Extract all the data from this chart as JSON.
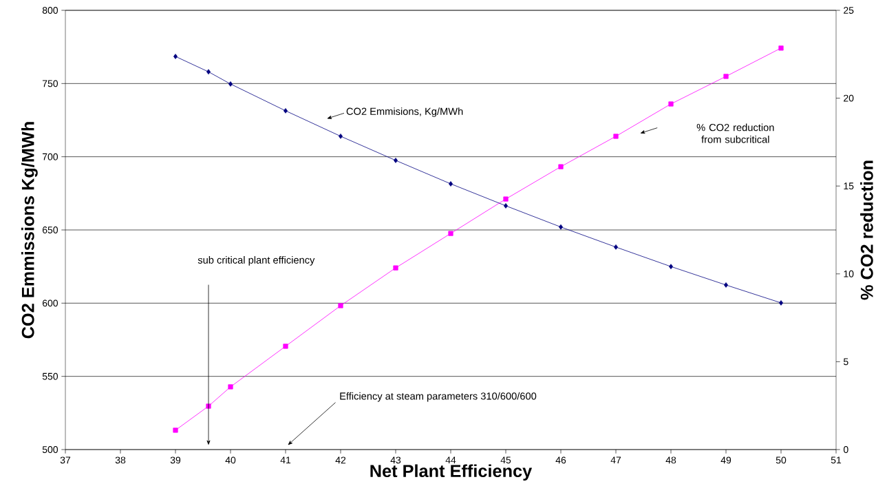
{
  "chart_data": {
    "type": "line",
    "xlabel": "Net Plant Efficiency",
    "ylabel": "CO2 Emmissions Kg/MWh",
    "y2label": "% CO2 reduction",
    "xlim": [
      37,
      51
    ],
    "xticks": [
      37,
      38,
      39,
      40,
      41,
      42,
      43,
      44,
      45,
      46,
      47,
      48,
      49,
      50,
      51
    ],
    "ylim": [
      500,
      800
    ],
    "yticks": [
      500,
      550,
      600,
      650,
      700,
      750,
      800
    ],
    "y2lim": [
      0,
      25
    ],
    "y2ticks": [
      0,
      5,
      10,
      15,
      20,
      25
    ],
    "grid": "y",
    "line_style": "solid",
    "x": [
      39,
      39.6,
      40,
      41,
      42,
      43,
      44,
      45,
      46,
      47,
      48,
      49,
      50
    ],
    "series": [
      {
        "color": "#000080",
        "marker": "diamond",
        "values": [
          768.5,
          758,
          749.7,
          731.4,
          714,
          697.5,
          681.5,
          666.5,
          652,
          638.3,
          625,
          612.4,
          600.2
        ]
      },
      {
        "color": "#ff00ff",
        "marker": "square",
        "axis": "y2",
        "values": [
          1.1,
          2.47,
          3.57,
          5.88,
          8.19,
          10.34,
          12.3,
          14.26,
          16.1,
          17.83,
          19.67,
          21.24,
          22.85
        ]
      }
    ],
    "annotations": [
      "CO2 Emmisions, Kg/MWh",
      "% CO2 reduction from subcritical",
      "sub critical plant efficiency",
      "Efficiency at steam  parameters 310/600/600"
    ]
  }
}
